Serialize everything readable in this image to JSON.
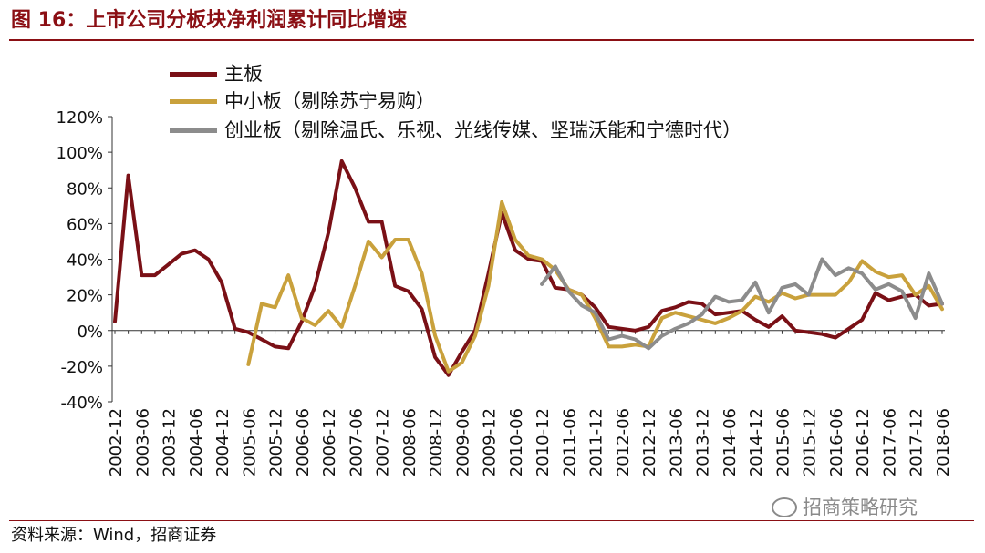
{
  "header": {
    "title": "图 16：上市公司分板块净利润累计同比增速"
  },
  "footer": {
    "source": "资料来源：Wind，招商证券"
  },
  "watermark": {
    "text": "招商策略研究",
    "icon": "wechat-icon"
  },
  "chart_data": {
    "type": "line",
    "title": "",
    "xlabel": "",
    "ylabel": "",
    "ylim": [
      -40,
      120
    ],
    "yticks": [
      -40,
      -20,
      0,
      20,
      40,
      60,
      80,
      100,
      120
    ],
    "ytick_labels": [
      "-40%",
      "-20%",
      "0%",
      "20%",
      "40%",
      "60%",
      "80%",
      "100%",
      "120%"
    ],
    "x": [
      "2002-12",
      "2003-03",
      "2003-06",
      "2003-09",
      "2003-12",
      "2004-03",
      "2004-06",
      "2004-09",
      "2004-12",
      "2005-03",
      "2005-06",
      "2005-09",
      "2005-12",
      "2006-03",
      "2006-06",
      "2006-09",
      "2006-12",
      "2007-03",
      "2007-06",
      "2007-09",
      "2007-12",
      "2008-03",
      "2008-06",
      "2008-09",
      "2008-12",
      "2009-03",
      "2009-06",
      "2009-09",
      "2009-12",
      "2010-03",
      "2010-06",
      "2010-09",
      "2010-12",
      "2011-03",
      "2011-06",
      "2011-09",
      "2011-12",
      "2012-03",
      "2012-06",
      "2012-09",
      "2012-12",
      "2013-03",
      "2013-06",
      "2013-09",
      "2013-12",
      "2014-03",
      "2014-06",
      "2014-09",
      "2014-12",
      "2015-03",
      "2015-06",
      "2015-09",
      "2015-12",
      "2016-03",
      "2016-06",
      "2016-09",
      "2016-12",
      "2017-03",
      "2017-06",
      "2017-09",
      "2017-12",
      "2018-03",
      "2018-06"
    ],
    "x_tick_labels": [
      "2002-12",
      "2003-06",
      "2003-12",
      "2004-06",
      "2004-12",
      "2005-06",
      "2005-12",
      "2006-06",
      "2006-12",
      "2007-06",
      "2007-12",
      "2008-06",
      "2008-12",
      "2009-06",
      "2009-12",
      "2010-06",
      "2010-12",
      "2011-06",
      "2011-12",
      "2012-06",
      "2012-12",
      "2013-06",
      "2013-12",
      "2014-06",
      "2014-12",
      "2015-06",
      "2015-12",
      "2016-06",
      "2016-12",
      "2017-06",
      "2017-12",
      "2018-06"
    ],
    "legend_position": "top-left",
    "grid": false,
    "series": [
      {
        "name": "主板",
        "color": "#7a1016",
        "values": [
          5,
          87,
          31,
          31,
          37,
          43,
          45,
          40,
          27,
          1,
          -1,
          -5,
          -9,
          -10,
          5,
          25,
          55,
          95,
          80,
          61,
          61,
          25,
          22,
          12,
          -15,
          -25,
          -12,
          0,
          32,
          66,
          45,
          40,
          39,
          24,
          23,
          20,
          13,
          2,
          1,
          0,
          2,
          11,
          13,
          16,
          15,
          9,
          10,
          11,
          6,
          2,
          8,
          0,
          -1,
          -2,
          -4,
          1,
          6,
          21,
          17,
          19,
          20,
          14,
          15
        ]
      },
      {
        "name": "中小板（剔除苏宁易购）",
        "color": "#c9a13c",
        "values": [
          null,
          null,
          null,
          null,
          null,
          null,
          null,
          null,
          null,
          null,
          -19,
          15,
          13,
          31,
          7,
          3,
          11,
          2,
          25,
          50,
          41,
          51,
          51,
          32,
          -3,
          -23,
          -18,
          -3,
          25,
          72,
          51,
          42,
          40,
          34,
          23,
          20,
          7,
          -9,
          -9,
          -8,
          -9,
          7,
          10,
          8,
          6,
          4,
          7,
          11,
          19,
          16,
          21,
          18,
          20,
          20,
          20,
          27,
          39,
          33,
          30,
          31,
          20,
          25,
          12
        ]
      },
      {
        "name": "创业板（剔除温氏、乐视、光线传媒、坚瑞沃能和宁德时代）",
        "color": "#8c8c8c",
        "values": [
          null,
          null,
          null,
          null,
          null,
          null,
          null,
          null,
          null,
          null,
          null,
          null,
          null,
          null,
          null,
          null,
          null,
          null,
          null,
          null,
          null,
          null,
          null,
          null,
          null,
          null,
          null,
          null,
          null,
          null,
          null,
          null,
          26,
          36,
          22,
          14,
          10,
          -5,
          -3,
          -5,
          -10,
          -3,
          1,
          4,
          9,
          19,
          16,
          17,
          27,
          10,
          24,
          26,
          20,
          40,
          31,
          35,
          32,
          23,
          26,
          22,
          7,
          32,
          15
        ]
      }
    ]
  }
}
